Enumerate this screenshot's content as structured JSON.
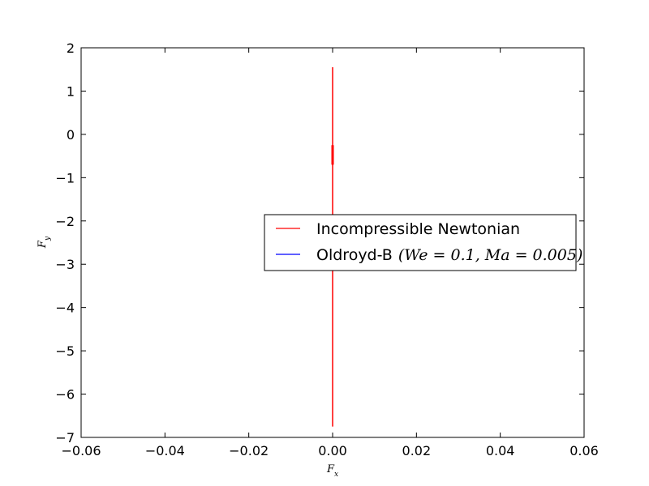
{
  "chart_data": {
    "type": "line",
    "title": "",
    "xlabel": "F_x",
    "ylabel": "F_y",
    "xlim": [
      -0.06,
      0.06
    ],
    "ylim": [
      -7,
      2
    ],
    "xticks": [
      -0.06,
      -0.04,
      -0.02,
      0.0,
      0.02,
      0.04,
      0.06
    ],
    "xtick_labels": [
      "−0.06",
      "−0.04",
      "−0.02",
      "0.00",
      "0.02",
      "0.04",
      "0.06"
    ],
    "yticks": [
      -7,
      -6,
      -5,
      -4,
      -3,
      -2,
      -1,
      0,
      1,
      2
    ],
    "ytick_labels": [
      "−7",
      "−6",
      "−5",
      "−4",
      "−3",
      "−2",
      "−1",
      "0",
      "1",
      "2"
    ],
    "grid": false,
    "legend_position": "center-right",
    "series": [
      {
        "name": "Incompressible Newtonian",
        "color": "#ff0000",
        "segments": [
          {
            "x": [
              0.0,
              0.0
            ],
            "y": [
              1.55,
              -6.75
            ],
            "width": 1.5
          },
          {
            "x": [
              0.0,
              0.0
            ],
            "y": [
              -0.25,
              -0.7
            ],
            "width": 3
          }
        ]
      },
      {
        "name": "Oldroyd-B",
        "name_math": "(We = 0.1, Ma = 0.005)",
        "color": "#0000ff",
        "segments": []
      }
    ]
  }
}
